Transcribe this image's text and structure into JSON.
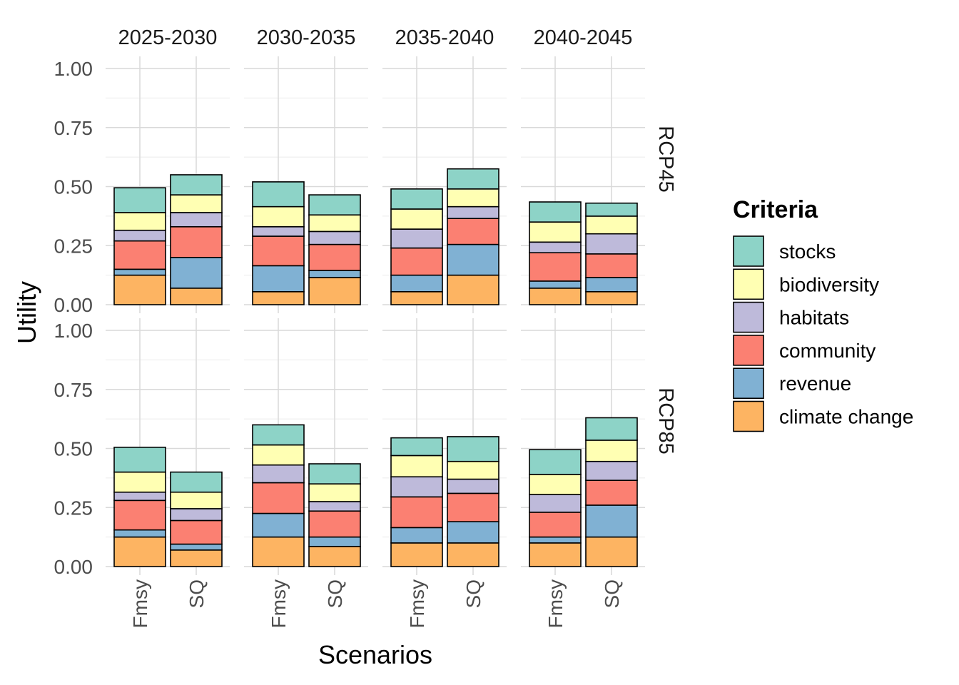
{
  "chart_data": {
    "type": "bar",
    "stacked": true,
    "facet_columns": [
      "2025-2030",
      "2030-2035",
      "2035-2040",
      "2040-2045"
    ],
    "facet_rows": [
      "RCP45",
      "RCP85"
    ],
    "categories": [
      "Fmsy",
      "SQ"
    ],
    "xlabel": "Scenarios",
    "ylabel": "Utility",
    "ylim": [
      0,
      1
    ],
    "y_ticks": [
      "0.00",
      "0.25",
      "0.50",
      "0.75",
      "1.00"
    ],
    "grid": true,
    "legend": {
      "title": "Criteria",
      "position": "right",
      "items": [
        "stocks",
        "biodiversity",
        "habitats",
        "community",
        "revenue",
        "climate change"
      ]
    },
    "stack_order_bottom_to_top": [
      "climate change",
      "revenue",
      "community",
      "habitats",
      "biodiversity",
      "stocks"
    ],
    "colors": {
      "stocks": "#8DD3C7",
      "biodiversity": "#FFFFB3",
      "habitats": "#BEBADA",
      "community": "#FB8072",
      "revenue": "#80B1D3",
      "climate change": "#FDB462"
    },
    "series": {
      "RCP45": {
        "2025-2030": {
          "Fmsy": {
            "climate change": 0.125,
            "revenue": 0.025,
            "community": 0.12,
            "habitats": 0.045,
            "biodiversity": 0.075,
            "stocks": 0.105
          },
          "SQ": {
            "climate change": 0.07,
            "revenue": 0.13,
            "community": 0.13,
            "habitats": 0.06,
            "biodiversity": 0.075,
            "stocks": 0.085
          }
        },
        "2030-2035": {
          "Fmsy": {
            "climate change": 0.055,
            "revenue": 0.11,
            "community": 0.125,
            "habitats": 0.04,
            "biodiversity": 0.085,
            "stocks": 0.105
          },
          "SQ": {
            "climate change": 0.115,
            "revenue": 0.03,
            "community": 0.11,
            "habitats": 0.055,
            "biodiversity": 0.07,
            "stocks": 0.085
          }
        },
        "2035-2040": {
          "Fmsy": {
            "climate change": 0.055,
            "revenue": 0.07,
            "community": 0.115,
            "habitats": 0.08,
            "biodiversity": 0.085,
            "stocks": 0.085
          },
          "SQ": {
            "climate change": 0.125,
            "revenue": 0.13,
            "community": 0.11,
            "habitats": 0.05,
            "biodiversity": 0.075,
            "stocks": 0.085
          }
        },
        "2040-2045": {
          "Fmsy": {
            "climate change": 0.07,
            "revenue": 0.03,
            "community": 0.12,
            "habitats": 0.045,
            "biodiversity": 0.085,
            "stocks": 0.085
          },
          "SQ": {
            "climate change": 0.055,
            "revenue": 0.06,
            "community": 0.1,
            "habitats": 0.085,
            "biodiversity": 0.075,
            "stocks": 0.055
          }
        }
      },
      "RCP85": {
        "2025-2030": {
          "Fmsy": {
            "climate change": 0.125,
            "revenue": 0.03,
            "community": 0.125,
            "habitats": 0.035,
            "biodiversity": 0.085,
            "stocks": 0.105
          },
          "SQ": {
            "climate change": 0.07,
            "revenue": 0.025,
            "community": 0.1,
            "habitats": 0.05,
            "biodiversity": 0.07,
            "stocks": 0.085
          }
        },
        "2030-2035": {
          "Fmsy": {
            "climate change": 0.125,
            "revenue": 0.1,
            "community": 0.13,
            "habitats": 0.075,
            "biodiversity": 0.085,
            "stocks": 0.085
          },
          "SQ": {
            "climate change": 0.085,
            "revenue": 0.04,
            "community": 0.11,
            "habitats": 0.04,
            "biodiversity": 0.075,
            "stocks": 0.085
          }
        },
        "2035-2040": {
          "Fmsy": {
            "climate change": 0.1,
            "revenue": 0.065,
            "community": 0.13,
            "habitats": 0.085,
            "biodiversity": 0.09,
            "stocks": 0.075
          },
          "SQ": {
            "climate change": 0.1,
            "revenue": 0.09,
            "community": 0.12,
            "habitats": 0.06,
            "biodiversity": 0.075,
            "stocks": 0.105
          }
        },
        "2040-2045": {
          "Fmsy": {
            "climate change": 0.1,
            "revenue": 0.025,
            "community": 0.105,
            "habitats": 0.075,
            "biodiversity": 0.085,
            "stocks": 0.105
          },
          "SQ": {
            "climate change": 0.125,
            "revenue": 0.135,
            "community": 0.105,
            "habitats": 0.08,
            "biodiversity": 0.09,
            "stocks": 0.095
          }
        }
      }
    }
  }
}
